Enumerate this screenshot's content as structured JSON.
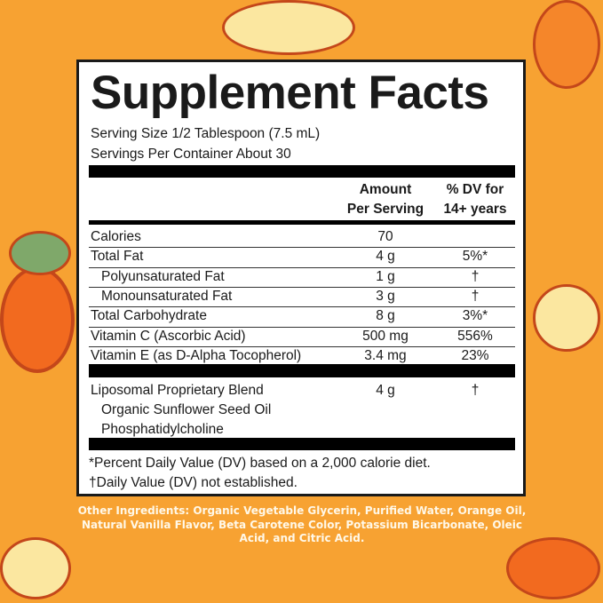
{
  "title": "Supplement Facts",
  "serving_size": "Serving Size 1/2 Tablespoon (7.5 mL)",
  "servings_per_container": "Servings Per Container About 30",
  "header": {
    "amount_1": "Amount",
    "amount_2": "Per Serving",
    "dv_1": "% DV for",
    "dv_2": "14+ years"
  },
  "rows": [
    {
      "label": "Calories",
      "amount": "70",
      "dv": ""
    },
    {
      "label": "Total Fat",
      "amount": "4 g",
      "dv": "5%*"
    },
    {
      "label": "Polyunsaturated Fat",
      "amount": "1 g",
      "dv": "†"
    },
    {
      "label": "Monounsaturated Fat",
      "amount": "3 g",
      "dv": "†"
    },
    {
      "label": "Total Carbohydrate",
      "amount": "8 g",
      "dv": "3%*"
    },
    {
      "label": "Vitamin C (Ascorbic Acid)",
      "amount": "500 mg",
      "dv": "556%"
    },
    {
      "label": "Vitamin E (as D-Alpha Tocopherol)",
      "amount": "3.4 mg",
      "dv": "23%"
    }
  ],
  "blend": {
    "label": "Liposomal Proprietary Blend",
    "amount": "4 g",
    "dv": "†",
    "ingredients": [
      "Organic Sunflower Seed Oil",
      "Phosphatidylcholine"
    ]
  },
  "footnotes": [
    "*Percent Daily Value (DV) based on a 2,000 calorie diet.",
    "†Daily Value (DV) not established."
  ],
  "other_ingredients": "Other Ingredients: Organic Vegetable Glycerin, Purified Water, Orange Oil, Natural Vanilla Flavor, Beta Carotene Color, Potassium Bicarbonate, Oleic Acid, and Citric Acid.",
  "colors": {
    "background": "#f7a232",
    "panel": "#ffffff",
    "text": "#1a1a1a"
  }
}
